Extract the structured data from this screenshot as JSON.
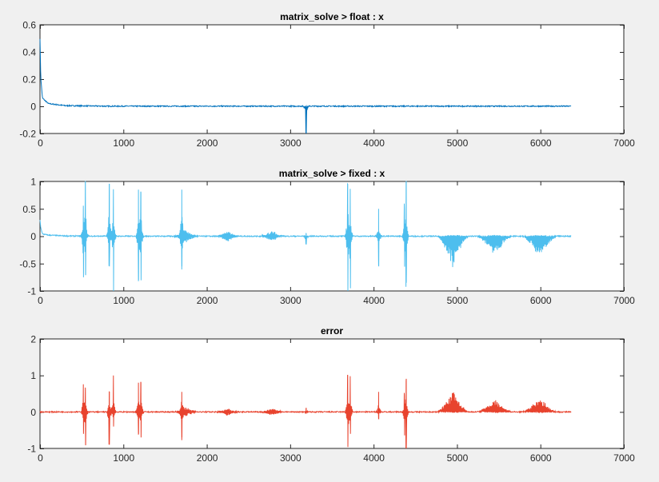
{
  "chart_data": [
    {
      "type": "line",
      "title": "matrix_solve > float : x",
      "xlim": [
        0,
        7000
      ],
      "ylim": [
        -0.2,
        0.6
      ],
      "xticks": [
        0,
        1000,
        2000,
        3000,
        4000,
        5000,
        6000,
        7000
      ],
      "yticks": [
        -0.2,
        0,
        0.2,
        0.4,
        0.6
      ],
      "ytick_labels": [
        "-0.2",
        "0",
        "0.2",
        "0.4",
        "0.6"
      ],
      "color": "#0072bd",
      "x_end": 6370,
      "decay": [
        [
          0,
          0.5
        ],
        [
          10,
          0.2
        ],
        [
          30,
          0.06
        ],
        [
          100,
          0.02
        ],
        [
          300,
          0.005
        ],
        [
          800,
          0.001
        ]
      ],
      "spikes": [
        [
          3190,
          0,
          -0.2
        ]
      ],
      "bursts": []
    },
    {
      "type": "line",
      "title": "matrix_solve > fixed : x",
      "xlim": [
        0,
        7000
      ],
      "ylim": [
        -1,
        1
      ],
      "xticks": [
        0,
        1000,
        2000,
        3000,
        4000,
        5000,
        6000,
        7000
      ],
      "yticks": [
        -1,
        -0.5,
        0,
        0.5,
        1
      ],
      "ytick_labels": [
        "-1",
        "-0.5",
        "0",
        "0.5",
        "1"
      ],
      "color": "#4dbeee",
      "x_end": 6370,
      "decay": [
        [
          0,
          0.3
        ],
        [
          10,
          0.15
        ],
        [
          30,
          0.04
        ],
        [
          100,
          0.02
        ],
        [
          300,
          0.005
        ],
        [
          800,
          0.0
        ]
      ],
      "spikes": [
        [
          520,
          0.5,
          -0.75
        ],
        [
          545,
          1.0,
          -0.7
        ],
        [
          830,
          0.95,
          -0.55
        ],
        [
          880,
          0.85,
          -1.0
        ],
        [
          1180,
          0.85,
          -0.8
        ],
        [
          1210,
          0.8,
          -0.8
        ],
        [
          1700,
          0.85,
          -0.55
        ],
        [
          3190,
          0.05,
          -0.15
        ],
        [
          3690,
          0.95,
          -1.0
        ],
        [
          3720,
          0.85,
          -0.95
        ],
        [
          4060,
          0.5,
          -0.55
        ],
        [
          4370,
          0.5,
          -0.45
        ],
        [
          4390,
          1.0,
          -0.85
        ]
      ],
      "bursts": [
        [
          1750,
          160,
          0.1,
          -0.1
        ],
        [
          2250,
          150,
          0.08,
          -0.08
        ],
        [
          2780,
          150,
          0.08,
          -0.08
        ],
        [
          4950,
          200,
          0.0,
          -0.55
        ],
        [
          5450,
          220,
          0.0,
          -0.35
        ],
        [
          5990,
          220,
          0.0,
          -0.4
        ]
      ]
    },
    {
      "type": "line",
      "title": "error",
      "xlim": [
        0,
        7000
      ],
      "ylim": [
        -1,
        2
      ],
      "xticks": [
        0,
        1000,
        2000,
        3000,
        4000,
        5000,
        6000,
        7000
      ],
      "yticks": [
        -1,
        0,
        1,
        2
      ],
      "ytick_labels": [
        "-1",
        "0",
        "1",
        "2"
      ],
      "color": "#e8432e",
      "x_end": 6370,
      "decay": [
        [
          0,
          0.0
        ],
        [
          800,
          0.0
        ]
      ],
      "spikes": [
        [
          520,
          0.75,
          -0.6
        ],
        [
          545,
          0.6,
          -0.9
        ],
        [
          830,
          0.55,
          -0.9
        ],
        [
          880,
          1.0,
          -0.4
        ],
        [
          1180,
          0.8,
          -0.6
        ],
        [
          1210,
          0.8,
          -0.7
        ],
        [
          1700,
          0.55,
          -0.7
        ],
        [
          3190,
          0.1,
          -0.05
        ],
        [
          3690,
          1.0,
          -0.95
        ],
        [
          3720,
          0.95,
          -0.6
        ],
        [
          4060,
          0.55,
          -0.2
        ],
        [
          4370,
          0.45,
          -0.5
        ],
        [
          4390,
          0.85,
          -1.0
        ]
      ],
      "bursts": [
        [
          1750,
          160,
          0.1,
          -0.1
        ],
        [
          2250,
          150,
          0.08,
          -0.08
        ],
        [
          2780,
          150,
          0.08,
          -0.08
        ],
        [
          4950,
          200,
          0.55,
          0.0
        ],
        [
          5450,
          220,
          0.33,
          0.0
        ],
        [
          5990,
          220,
          0.38,
          0.0
        ]
      ]
    }
  ]
}
